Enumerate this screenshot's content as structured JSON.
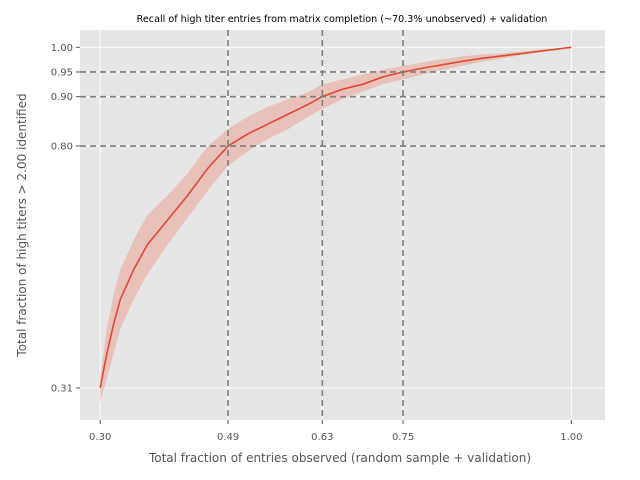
{
  "chart_data": {
    "type": "line",
    "title": "Recall of high titer entries from matrix completion (~70.3% unobserved) + validation",
    "xlabel": "Total fraction of entries observed (random sample + validation)",
    "ylabel": "Total fraction of high titers > 2.00 identified",
    "xlim": [
      0.27,
      1.05
    ],
    "ylim": [
      0.245,
      1.035
    ],
    "xticks": [
      0.3,
      0.49,
      0.63,
      0.75,
      1.0
    ],
    "xtick_labels": [
      "0.30",
      "0.49",
      "0.63",
      "0.75",
      "1.00"
    ],
    "yticks": [
      0.31,
      0.8,
      0.9,
      0.95,
      1.0
    ],
    "ytick_labels": [
      "0.31",
      "0.80",
      "0.90",
      "0.95",
      "1.00"
    ],
    "grid": true,
    "reference_lines": {
      "x": [
        0.49,
        0.63,
        0.75
      ],
      "y": [
        0.8,
        0.9,
        0.95
      ]
    },
    "series": [
      {
        "x": [
          0.3,
          0.31,
          0.32,
          0.33,
          0.35,
          0.37,
          0.4,
          0.43,
          0.46,
          0.49,
          0.52,
          0.55,
          0.58,
          0.61,
          0.63,
          0.66,
          0.69,
          0.72,
          0.75,
          0.78,
          0.81,
          0.84,
          0.87,
          0.9,
          0.93,
          0.96,
          1.0
        ],
        "y": [
          0.31,
          0.38,
          0.44,
          0.49,
          0.55,
          0.6,
          0.65,
          0.7,
          0.755,
          0.8,
          0.825,
          0.845,
          0.865,
          0.885,
          0.9,
          0.915,
          0.925,
          0.94,
          0.95,
          0.958,
          0.965,
          0.972,
          0.978,
          0.983,
          0.988,
          0.993,
          1.0
        ],
        "lower": [
          0.28,
          0.33,
          0.38,
          0.43,
          0.49,
          0.54,
          0.6,
          0.655,
          0.71,
          0.76,
          0.79,
          0.815,
          0.835,
          0.86,
          0.875,
          0.895,
          0.91,
          0.925,
          0.935,
          0.945,
          0.955,
          0.963,
          0.972,
          0.978,
          0.985,
          0.992,
          1.0
        ],
        "upper": [
          0.33,
          0.43,
          0.5,
          0.55,
          0.61,
          0.66,
          0.7,
          0.745,
          0.8,
          0.835,
          0.86,
          0.88,
          0.895,
          0.91,
          0.925,
          0.935,
          0.945,
          0.955,
          0.962,
          0.97,
          0.976,
          0.982,
          0.986,
          0.988,
          0.992,
          0.996,
          1.0
        ]
      }
    ],
    "colors": {
      "line": "#e24a33",
      "band": "#e8a89c",
      "plot_background": "#e5e5e5",
      "grid": "#ffffff",
      "reference": "#7f7f7f"
    }
  }
}
